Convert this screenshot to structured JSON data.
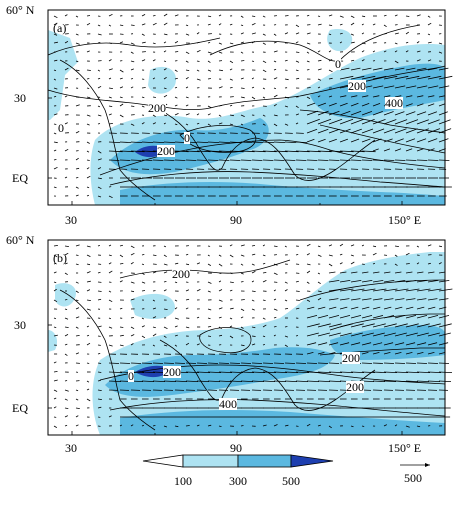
{
  "panels": [
    {
      "id": "a",
      "label": "(a)",
      "lat_labels": [
        "60° N",
        "30",
        "EQ"
      ],
      "lon_labels": [
        "30",
        "90",
        "150° E"
      ],
      "contour_labels": [
        "0",
        "200",
        "400",
        "200",
        "0",
        "0",
        "200"
      ]
    },
    {
      "id": "b",
      "label": "(b)",
      "lat_labels": [
        "60° N",
        "30",
        "EQ"
      ],
      "lon_labels": [
        "30",
        "90",
        "150° E"
      ],
      "contour_labels": [
        "200",
        "0",
        "200",
        "400",
        "200",
        "200"
      ]
    }
  ],
  "colorbar": {
    "levels": [
      "100",
      "300",
      "500"
    ],
    "colors": [
      "#ffffff",
      "#aee3f2",
      "#5bb8e0",
      "#1e3fb0"
    ],
    "reference_vector": "500"
  },
  "colors": {
    "light_blue": "#aee3f2",
    "mid_blue": "#5bb8e0",
    "dark_blue": "#1e3fb0",
    "lines": "#000000"
  }
}
